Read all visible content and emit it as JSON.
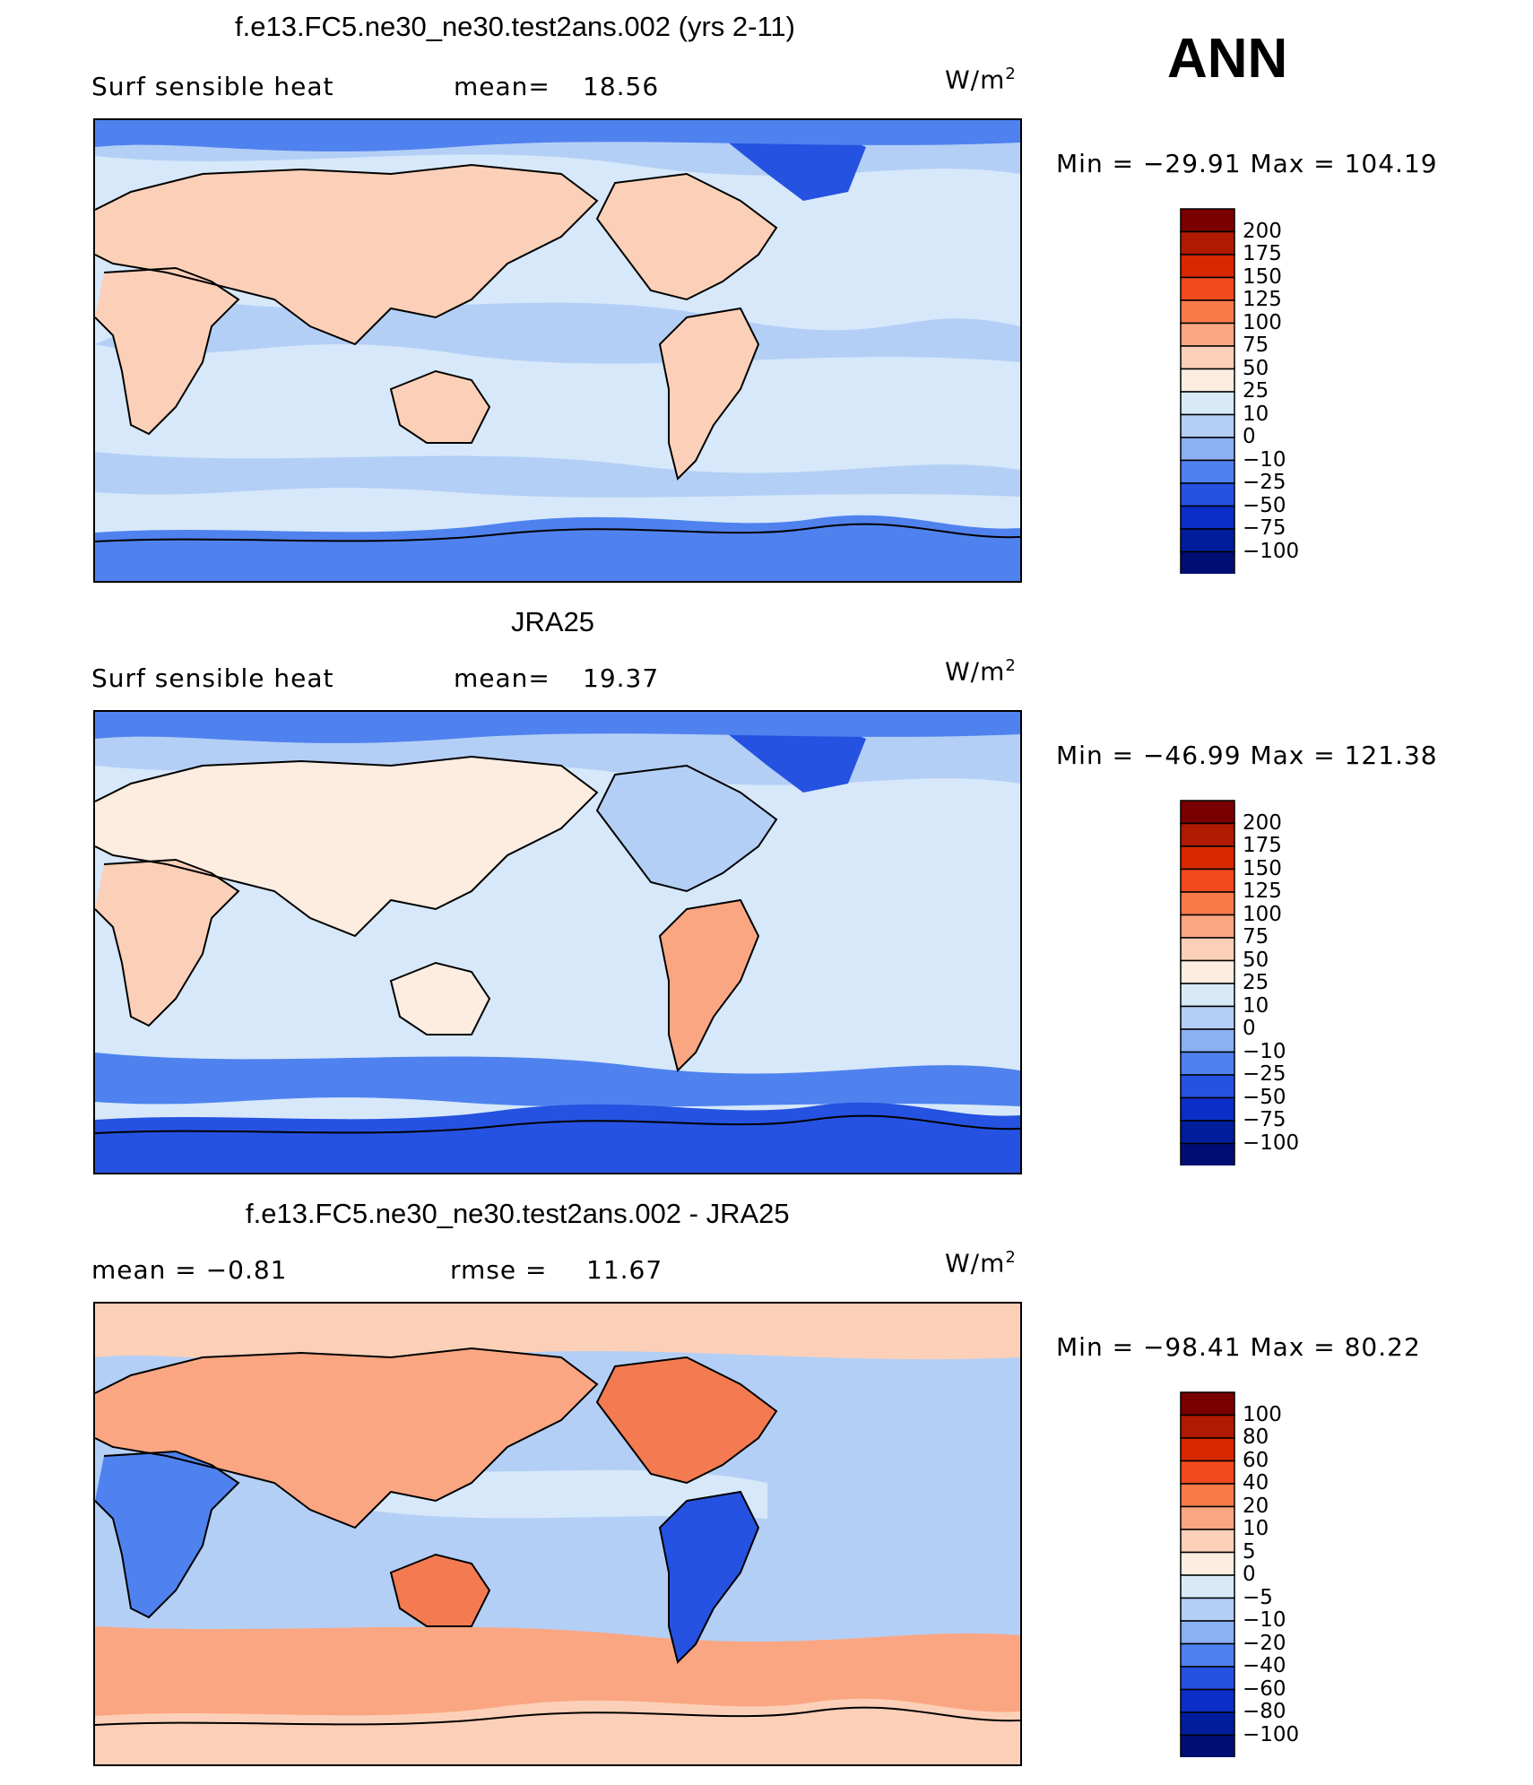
{
  "season": "ANN",
  "panels": [
    {
      "title": "f.e13.FC5.ne30_ne30.test2ans.002 (yrs 2-11)",
      "left_label": "Surf  sensible  heat",
      "stat_label": "mean=",
      "stat_value": "18.56",
      "units_main": "W/m",
      "units_exp": "2",
      "range_text": "Min  =  −29.91  Max  =  104.19",
      "kind": "model",
      "levels": [
        "200",
        "175",
        "150",
        "125",
        "100",
        "75",
        "50",
        "25",
        "10",
        "0",
        "−10",
        "−25",
        "−50",
        "−75",
        "−100"
      ]
    },
    {
      "title": "JRA25",
      "left_label": "Surf  sensible  heat",
      "stat_label": "mean=",
      "stat_value": "19.37",
      "units_main": "W/m",
      "units_exp": "2",
      "range_text": "Min  =  −46.99  Max  =  121.38",
      "kind": "obs",
      "levels": [
        "200",
        "175",
        "150",
        "125",
        "100",
        "75",
        "50",
        "25",
        "10",
        "0",
        "−10",
        "−25",
        "−50",
        "−75",
        "−100"
      ]
    },
    {
      "title": "f.e13.FC5.ne30_ne30.test2ans.002 - JRA25",
      "left_label": "mean  =    −0.81",
      "stat_label": "rmse  =",
      "stat_value": "11.67",
      "units_main": "W/m",
      "units_exp": "2",
      "range_text": "Min  =  −98.41  Max  =    80.22",
      "kind": "diff",
      "levels": [
        "100",
        "80",
        "60",
        "40",
        "20",
        "10",
        "5",
        "0",
        "−5",
        "−10",
        "−20",
        "−40",
        "−60",
        "−80",
        "−100"
      ]
    }
  ],
  "colorbar_colors": [
    "#7a0000",
    "#b01a00",
    "#d82800",
    "#f24a1e",
    "#fa7a4a",
    "#fba682",
    "#fcd0b8",
    "#fdece0",
    "#d8eaf8",
    "#b4cff6",
    "#8bb1f4",
    "#4f82ee",
    "#2552e0",
    "#0b2ec8",
    "#001e9c",
    "#000e74"
  ],
  "map_colors": {
    "ocean": "#d6e8fa",
    "ocean_cool": "#b4cff6",
    "polar": "#4f82ee",
    "polar_deep": "#2552e0",
    "land_warm": "#fcd0b8",
    "land_hot": "#fba682",
    "land_light": "#fdece0",
    "diff_hot": "#f47a52",
    "diff_warm": "#fba682"
  }
}
